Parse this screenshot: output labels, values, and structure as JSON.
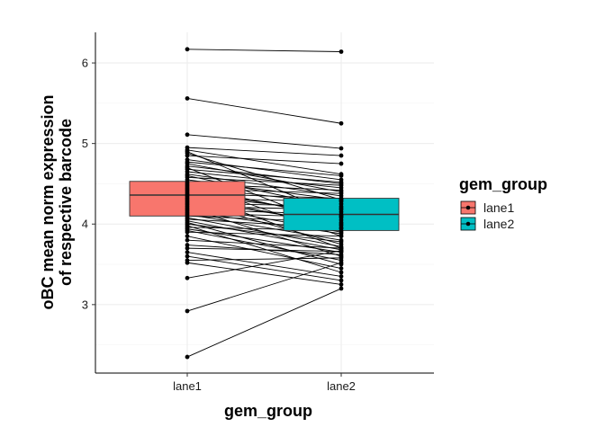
{
  "chart_data": {
    "type": "box",
    "categories": [
      "lane1",
      "lane2"
    ],
    "xlabel": "gem_group",
    "ylabel_lines": [
      "oBC mean norm expression",
      "of respective barcode"
    ],
    "ylim": [
      2.15,
      6.38
    ],
    "yticks": [
      3,
      4,
      5,
      6
    ],
    "grid": true,
    "legend": {
      "title": "gem_group",
      "position": "right",
      "entries": [
        {
          "label": "lane1",
          "color": "#F8766D"
        },
        {
          "label": "lane2",
          "color": "#00BFC4"
        }
      ]
    },
    "boxes": [
      {
        "name": "lane1",
        "color": "#F8766D",
        "q1": 4.1,
        "median": 4.36,
        "q3": 4.53
      },
      {
        "name": "lane2",
        "color": "#00BFC4",
        "q1": 3.92,
        "median": 4.12,
        "q3": 4.32
      }
    ],
    "paired_points": [
      [
        6.17,
        6.14
      ],
      [
        5.56,
        5.25
      ],
      [
        5.11,
        4.94
      ],
      [
        4.95,
        4.85
      ],
      [
        4.92,
        4.62
      ],
      [
        4.9,
        4.1
      ],
      [
        4.88,
        4.3
      ],
      [
        4.85,
        4.75
      ],
      [
        4.8,
        4.55
      ],
      [
        4.77,
        4.6
      ],
      [
        4.75,
        4.4
      ],
      [
        4.72,
        4.5
      ],
      [
        4.7,
        3.95
      ],
      [
        4.68,
        4.52
      ],
      [
        4.65,
        4.45
      ],
      [
        4.62,
        4.35
      ],
      [
        4.6,
        4.2
      ],
      [
        4.58,
        4.48
      ],
      [
        4.55,
        4.3
      ],
      [
        4.52,
        3.85
      ],
      [
        4.5,
        4.42
      ],
      [
        4.48,
        4.05
      ],
      [
        4.46,
        4.25
      ],
      [
        4.44,
        4.38
      ],
      [
        4.42,
        4.1
      ],
      [
        4.4,
        3.7
      ],
      [
        4.38,
        4.32
      ],
      [
        4.36,
        4.15
      ],
      [
        4.34,
        3.98
      ],
      [
        4.32,
        4.28
      ],
      [
        4.3,
        4.0
      ],
      [
        4.28,
        3.75
      ],
      [
        4.26,
        4.22
      ],
      [
        4.24,
        3.9
      ],
      [
        4.22,
        4.18
      ],
      [
        4.2,
        3.6
      ],
      [
        4.18,
        4.12
      ],
      [
        4.16,
        3.88
      ],
      [
        4.14,
        4.08
      ],
      [
        4.12,
        3.8
      ],
      [
        4.1,
        4.02
      ],
      [
        4.08,
        3.72
      ],
      [
        4.06,
        3.95
      ],
      [
        4.04,
        3.68
      ],
      [
        4.02,
        3.5
      ],
      [
        4.0,
        3.78
      ],
      [
        3.98,
        3.4
      ],
      [
        3.96,
        3.92
      ],
      [
        3.94,
        3.65
      ],
      [
        3.92,
        3.55
      ],
      [
        3.9,
        3.85
      ],
      [
        3.85,
        3.45
      ],
      [
        3.8,
        3.7
      ],
      [
        3.74,
        3.62
      ],
      [
        3.7,
        3.66
      ],
      [
        3.65,
        3.35
      ],
      [
        3.6,
        3.3
      ],
      [
        3.55,
        3.58
      ],
      [
        3.52,
        3.25
      ],
      [
        3.33,
        3.67
      ],
      [
        2.92,
        3.52
      ],
      [
        2.35,
        3.2
      ]
    ]
  }
}
